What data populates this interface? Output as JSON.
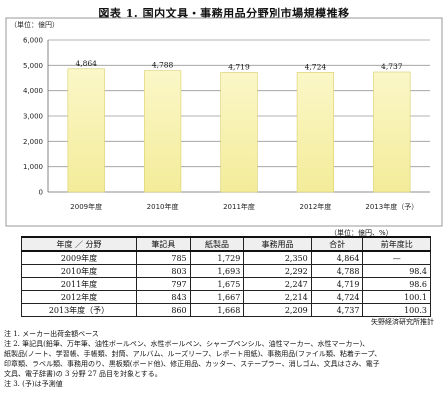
{
  "title": "図表 1. 国内文具・事務用品分野別市場規模推移",
  "chart_data": {
    "type": "bar",
    "unit_label": "（単位：億円）",
    "categories": [
      "2009年度",
      "2010年度",
      "2011年度",
      "2012年度",
      "2013年度（予）"
    ],
    "values": [
      4864,
      4788,
      4719,
      4724,
      4737
    ],
    "data_labels": [
      "4,864",
      "4,788",
      "4,719",
      "4,724",
      "4,737"
    ],
    "ylim": [
      0,
      6000
    ],
    "yticks": [
      0,
      1000,
      2000,
      3000,
      4000,
      5000,
      6000
    ],
    "ytick_labels": [
      "0",
      "1,000",
      "2,000",
      "3,000",
      "4,000",
      "5,000",
      "6,000"
    ],
    "grid": true,
    "bar_color": "#f3ec9a",
    "bar_top_color": "#fbf7c8",
    "bar_border": "#d8cf6a"
  },
  "table": {
    "unit": "（単位：億円、%）",
    "headers": [
      "年度 ／ 分野",
      "筆記具",
      "紙製品",
      "事務用品",
      "合計",
      "前年度比"
    ],
    "rows": [
      [
        "2009年度",
        "785",
        "1,729",
        "2,350",
        "4,864",
        "—"
      ],
      [
        "2010年度",
        "803",
        "1,693",
        "2,292",
        "4,788",
        "98.4"
      ],
      [
        "2011年度",
        "797",
        "1,675",
        "2,247",
        "4,719",
        "98.6"
      ],
      [
        "2012年度",
        "843",
        "1,667",
        "2,214",
        "4,724",
        "100.1"
      ],
      [
        "2013年度（予）",
        "860",
        "1,668",
        "2,209",
        "4,737",
        "100.3"
      ]
    ]
  },
  "source": "矢野経済研究所推計",
  "notes": [
    "注 1. メーカー出荷金額ベース",
    "注 2. 筆記具(鉛筆、万年筆、油性ボールペン、水性ボールペン、シャープペンシル、油性マーカー、水性マーカー)、",
    "紙製品(ノート、学習帳、手帳類、封筒、アルバム、ルーズリーフ、レポート用紙)、事務用品(ファイル類、粘着テープ、",
    "印章類、ラベル類、事務用のり、黒板類(ボード他)、修正用品、カッター、ステープラー、消しゴム、文具はさみ、電子",
    "文具、電子辞書)の 3 分野 27 品目を対象とする。",
    "注 3. (予)は予測値"
  ]
}
